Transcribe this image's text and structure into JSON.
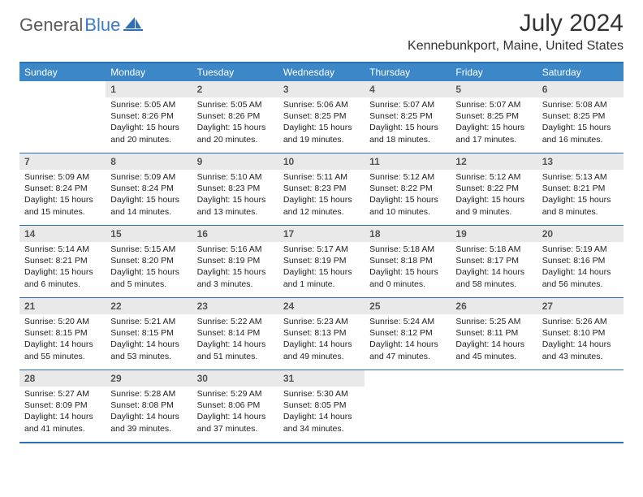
{
  "logo": {
    "part1": "General",
    "part2": "Blue"
  },
  "title": "July 2024",
  "location": "Kennebunkport, Maine, United States",
  "day_names": [
    "Sunday",
    "Monday",
    "Tuesday",
    "Wednesday",
    "Thursday",
    "Friday",
    "Saturday"
  ],
  "colors": {
    "header_bar": "#3b87c8",
    "rule": "#2f6fb5",
    "daynum_bg": "#e9e9e9",
    "logo_gray": "#5a5a5a",
    "logo_blue": "#3b7bc4"
  },
  "weeks": [
    [
      {
        "n": "",
        "lines": []
      },
      {
        "n": "1",
        "lines": [
          "Sunrise: 5:05 AM",
          "Sunset: 8:26 PM",
          "Daylight: 15 hours",
          "and 20 minutes."
        ]
      },
      {
        "n": "2",
        "lines": [
          "Sunrise: 5:05 AM",
          "Sunset: 8:26 PM",
          "Daylight: 15 hours",
          "and 20 minutes."
        ]
      },
      {
        "n": "3",
        "lines": [
          "Sunrise: 5:06 AM",
          "Sunset: 8:25 PM",
          "Daylight: 15 hours",
          "and 19 minutes."
        ]
      },
      {
        "n": "4",
        "lines": [
          "Sunrise: 5:07 AM",
          "Sunset: 8:25 PM",
          "Daylight: 15 hours",
          "and 18 minutes."
        ]
      },
      {
        "n": "5",
        "lines": [
          "Sunrise: 5:07 AM",
          "Sunset: 8:25 PM",
          "Daylight: 15 hours",
          "and 17 minutes."
        ]
      },
      {
        "n": "6",
        "lines": [
          "Sunrise: 5:08 AM",
          "Sunset: 8:25 PM",
          "Daylight: 15 hours",
          "and 16 minutes."
        ]
      }
    ],
    [
      {
        "n": "7",
        "lines": [
          "Sunrise: 5:09 AM",
          "Sunset: 8:24 PM",
          "Daylight: 15 hours",
          "and 15 minutes."
        ]
      },
      {
        "n": "8",
        "lines": [
          "Sunrise: 5:09 AM",
          "Sunset: 8:24 PM",
          "Daylight: 15 hours",
          "and 14 minutes."
        ]
      },
      {
        "n": "9",
        "lines": [
          "Sunrise: 5:10 AM",
          "Sunset: 8:23 PM",
          "Daylight: 15 hours",
          "and 13 minutes."
        ]
      },
      {
        "n": "10",
        "lines": [
          "Sunrise: 5:11 AM",
          "Sunset: 8:23 PM",
          "Daylight: 15 hours",
          "and 12 minutes."
        ]
      },
      {
        "n": "11",
        "lines": [
          "Sunrise: 5:12 AM",
          "Sunset: 8:22 PM",
          "Daylight: 15 hours",
          "and 10 minutes."
        ]
      },
      {
        "n": "12",
        "lines": [
          "Sunrise: 5:12 AM",
          "Sunset: 8:22 PM",
          "Daylight: 15 hours",
          "and 9 minutes."
        ]
      },
      {
        "n": "13",
        "lines": [
          "Sunrise: 5:13 AM",
          "Sunset: 8:21 PM",
          "Daylight: 15 hours",
          "and 8 minutes."
        ]
      }
    ],
    [
      {
        "n": "14",
        "lines": [
          "Sunrise: 5:14 AM",
          "Sunset: 8:21 PM",
          "Daylight: 15 hours",
          "and 6 minutes."
        ]
      },
      {
        "n": "15",
        "lines": [
          "Sunrise: 5:15 AM",
          "Sunset: 8:20 PM",
          "Daylight: 15 hours",
          "and 5 minutes."
        ]
      },
      {
        "n": "16",
        "lines": [
          "Sunrise: 5:16 AM",
          "Sunset: 8:19 PM",
          "Daylight: 15 hours",
          "and 3 minutes."
        ]
      },
      {
        "n": "17",
        "lines": [
          "Sunrise: 5:17 AM",
          "Sunset: 8:19 PM",
          "Daylight: 15 hours",
          "and 1 minute."
        ]
      },
      {
        "n": "18",
        "lines": [
          "Sunrise: 5:18 AM",
          "Sunset: 8:18 PM",
          "Daylight: 15 hours",
          "and 0 minutes."
        ]
      },
      {
        "n": "19",
        "lines": [
          "Sunrise: 5:18 AM",
          "Sunset: 8:17 PM",
          "Daylight: 14 hours",
          "and 58 minutes."
        ]
      },
      {
        "n": "20",
        "lines": [
          "Sunrise: 5:19 AM",
          "Sunset: 8:16 PM",
          "Daylight: 14 hours",
          "and 56 minutes."
        ]
      }
    ],
    [
      {
        "n": "21",
        "lines": [
          "Sunrise: 5:20 AM",
          "Sunset: 8:15 PM",
          "Daylight: 14 hours",
          "and 55 minutes."
        ]
      },
      {
        "n": "22",
        "lines": [
          "Sunrise: 5:21 AM",
          "Sunset: 8:15 PM",
          "Daylight: 14 hours",
          "and 53 minutes."
        ]
      },
      {
        "n": "23",
        "lines": [
          "Sunrise: 5:22 AM",
          "Sunset: 8:14 PM",
          "Daylight: 14 hours",
          "and 51 minutes."
        ]
      },
      {
        "n": "24",
        "lines": [
          "Sunrise: 5:23 AM",
          "Sunset: 8:13 PM",
          "Daylight: 14 hours",
          "and 49 minutes."
        ]
      },
      {
        "n": "25",
        "lines": [
          "Sunrise: 5:24 AM",
          "Sunset: 8:12 PM",
          "Daylight: 14 hours",
          "and 47 minutes."
        ]
      },
      {
        "n": "26",
        "lines": [
          "Sunrise: 5:25 AM",
          "Sunset: 8:11 PM",
          "Daylight: 14 hours",
          "and 45 minutes."
        ]
      },
      {
        "n": "27",
        "lines": [
          "Sunrise: 5:26 AM",
          "Sunset: 8:10 PM",
          "Daylight: 14 hours",
          "and 43 minutes."
        ]
      }
    ],
    [
      {
        "n": "28",
        "lines": [
          "Sunrise: 5:27 AM",
          "Sunset: 8:09 PM",
          "Daylight: 14 hours",
          "and 41 minutes."
        ]
      },
      {
        "n": "29",
        "lines": [
          "Sunrise: 5:28 AM",
          "Sunset: 8:08 PM",
          "Daylight: 14 hours",
          "and 39 minutes."
        ]
      },
      {
        "n": "30",
        "lines": [
          "Sunrise: 5:29 AM",
          "Sunset: 8:06 PM",
          "Daylight: 14 hours",
          "and 37 minutes."
        ]
      },
      {
        "n": "31",
        "lines": [
          "Sunrise: 5:30 AM",
          "Sunset: 8:05 PM",
          "Daylight: 14 hours",
          "and 34 minutes."
        ]
      },
      {
        "n": "",
        "lines": []
      },
      {
        "n": "",
        "lines": []
      },
      {
        "n": "",
        "lines": []
      }
    ]
  ]
}
